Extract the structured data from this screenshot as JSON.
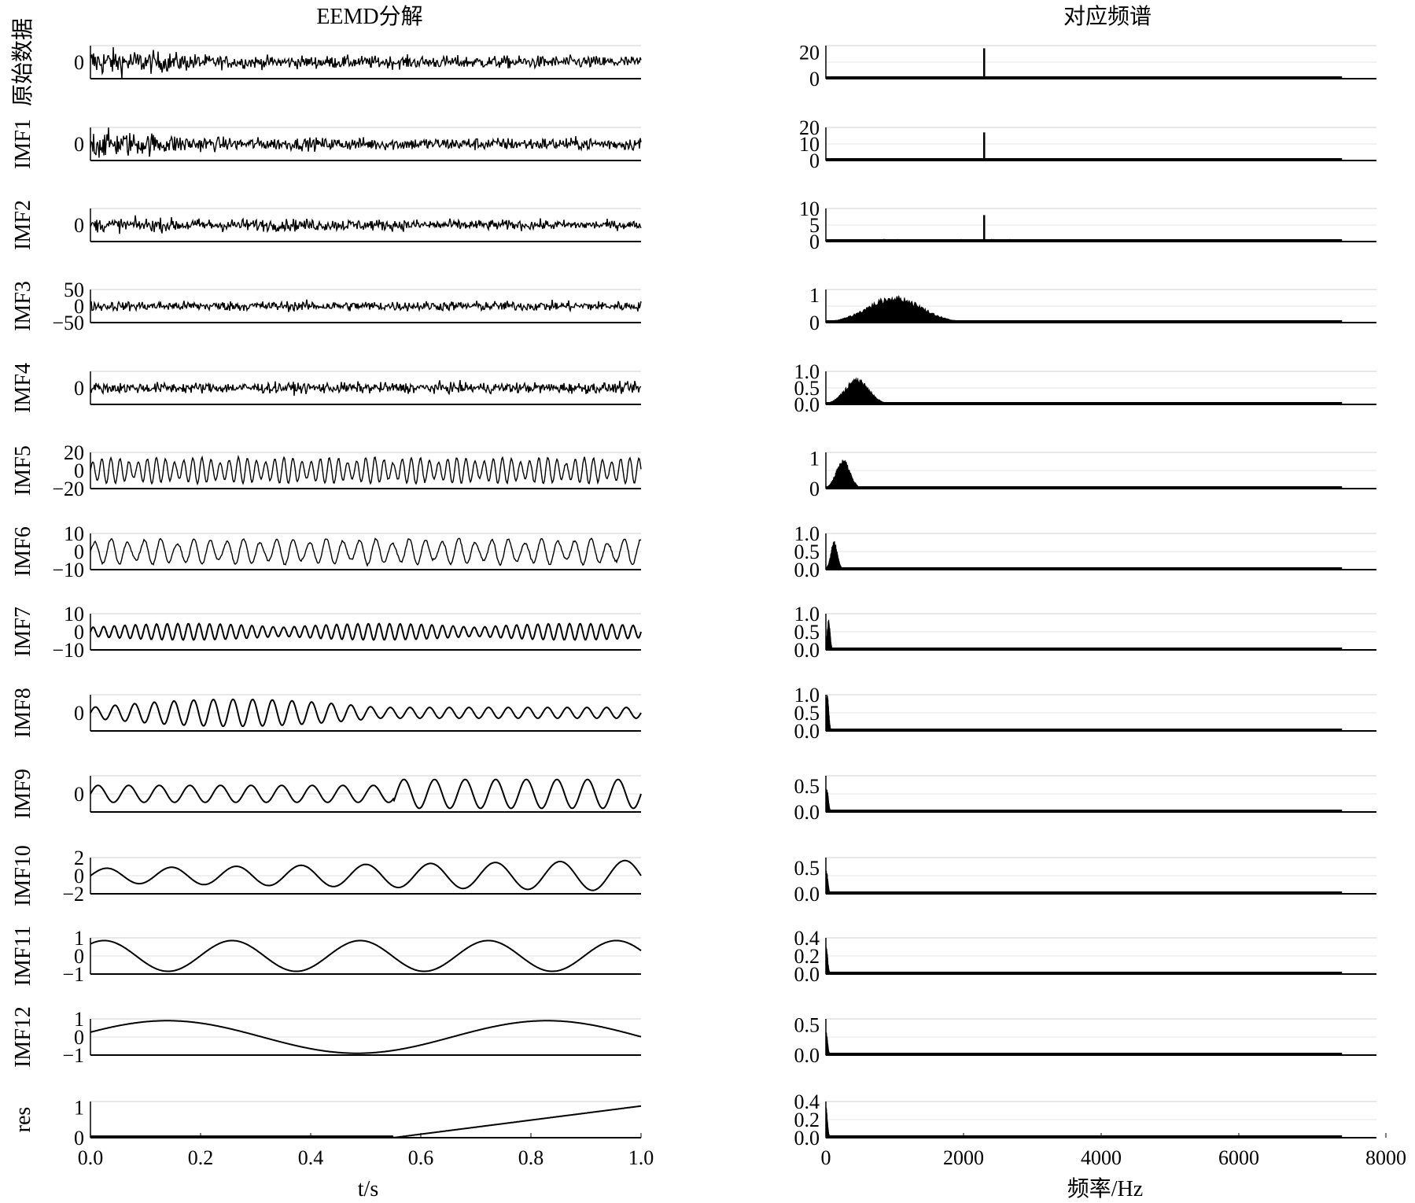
{
  "chart_data": [
    {
      "type": "line",
      "title": "EEMD分解",
      "xlabel": "t/s",
      "xlim": [
        0,
        1
      ],
      "x_ticks": [
        "0.0",
        "0.2",
        "0.4",
        "0.6",
        "0.8",
        "1.0"
      ],
      "grid": true,
      "panels": [
        {
          "label": "原始数据",
          "y_ticks": [
            "0"
          ],
          "ylim": [
            -40,
            40
          ]
        },
        {
          "label": "IMF1",
          "y_ticks": [
            "0"
          ],
          "ylim": [
            -30,
            30
          ]
        },
        {
          "label": "IMF2",
          "y_ticks": [
            "0"
          ],
          "ylim": [
            -30,
            30
          ]
        },
        {
          "label": "IMF3",
          "y_ticks": [
            "50",
            "0",
            "−50"
          ],
          "ylim": [
            -50,
            50
          ]
        },
        {
          "label": "IMF4",
          "y_ticks": [
            "0"
          ],
          "ylim": [
            -20,
            20
          ]
        },
        {
          "label": "IMF5",
          "y_ticks": [
            "20",
            "0",
            "−20"
          ],
          "ylim": [
            -20,
            20
          ]
        },
        {
          "label": "IMF6",
          "y_ticks": [
            "10",
            "0",
            "−10"
          ],
          "ylim": [
            -10,
            10
          ]
        },
        {
          "label": "IMF7",
          "y_ticks": [
            "10",
            "0",
            "−10"
          ],
          "ylim": [
            -10,
            10
          ]
        },
        {
          "label": "IMF8",
          "y_ticks": [
            "0"
          ],
          "ylim": [
            -4,
            4
          ]
        },
        {
          "label": "IMF9",
          "y_ticks": [
            "0"
          ],
          "ylim": [
            -3,
            3
          ]
        },
        {
          "label": "IMF10",
          "y_ticks": [
            "2",
            "0",
            "−2"
          ],
          "ylim": [
            -2,
            2
          ]
        },
        {
          "label": "IMF11",
          "y_ticks": [
            "1",
            "0",
            "−1"
          ],
          "ylim": [
            -1,
            1
          ]
        },
        {
          "label": "IMF12",
          "y_ticks": [
            "1",
            "0",
            "−1"
          ],
          "ylim": [
            -1,
            1
          ]
        },
        {
          "label": "res",
          "y_ticks": [
            "1",
            "0"
          ],
          "ylim": [
            0,
            1.2
          ]
        }
      ]
    },
    {
      "type": "bar",
      "title": "对应频谱",
      "xlabel": "频率/Hz",
      "xlim": [
        0,
        8000
      ],
      "x_ticks": [
        "0",
        "2000",
        "4000",
        "6000",
        "8000"
      ],
      "grid": true,
      "panels": [
        {
          "label": "原始数据",
          "y_ticks": [
            "20",
            "0"
          ],
          "ylim": [
            0,
            25
          ],
          "peaks": [
            {
              "freq": 2300,
              "amp": 23
            }
          ]
        },
        {
          "label": "IMF1",
          "y_ticks": [
            "20",
            "10",
            "0"
          ],
          "ylim": [
            0,
            20
          ],
          "peaks": [
            {
              "freq": 2300,
              "amp": 17
            }
          ]
        },
        {
          "label": "IMF2",
          "y_ticks": [
            "10",
            "5",
            "0"
          ],
          "ylim": [
            0,
            10
          ],
          "peaks": [
            {
              "freq": 2300,
              "amp": 8
            }
          ]
        },
        {
          "label": "IMF3",
          "y_ticks": [
            "1",
            "0"
          ],
          "ylim": [
            0,
            1.2
          ],
          "peaks": [
            {
              "freq": 1000,
              "amp": 1.0
            }
          ]
        },
        {
          "label": "IMF4",
          "y_ticks": [
            "1.0",
            "0.5",
            "0.0"
          ],
          "ylim": [
            0,
            1.0
          ],
          "peaks": [
            {
              "freq": 450,
              "amp": 0.8
            }
          ]
        },
        {
          "label": "IMF5",
          "y_ticks": [
            "1",
            "0"
          ],
          "ylim": [
            0,
            1.2
          ],
          "peaks": [
            {
              "freq": 250,
              "amp": 1.0
            }
          ]
        },
        {
          "label": "IMF6",
          "y_ticks": [
            "1.0",
            "0.5",
            "0.0"
          ],
          "ylim": [
            0,
            1.0
          ],
          "peaks": [
            {
              "freq": 120,
              "amp": 0.8
            }
          ]
        },
        {
          "label": "IMF7",
          "y_ticks": [
            "1.0",
            "0.5",
            "0.0"
          ],
          "ylim": [
            0,
            1.0
          ],
          "peaks": [
            {
              "freq": 40,
              "amp": 0.85
            }
          ]
        },
        {
          "label": "IMF8",
          "y_ticks": [
            "1.0",
            "0.5",
            "0.0"
          ],
          "ylim": [
            0,
            1.0
          ],
          "peaks": [
            {
              "freq": 20,
              "amp": 1.0
            }
          ]
        },
        {
          "label": "IMF9",
          "y_ticks": [
            "0.5",
            "0.0"
          ],
          "ylim": [
            0,
            0.7
          ],
          "peaks": [
            {
              "freq": 15,
              "amp": 0.45
            }
          ]
        },
        {
          "label": "IMF10",
          "y_ticks": [
            "0.5",
            "0.0"
          ],
          "ylim": [
            0,
            0.7
          ],
          "peaks": [
            {
              "freq": 8,
              "amp": 0.45
            }
          ]
        },
        {
          "label": "IMF11",
          "y_ticks": [
            "0.4",
            "0.2",
            "0.0"
          ],
          "ylim": [
            0,
            0.4
          ],
          "peaks": [
            {
              "freq": 5,
              "amp": 0.3
            }
          ]
        },
        {
          "label": "IMF12",
          "y_ticks": [
            "0.5",
            "0.0"
          ],
          "ylim": [
            0,
            0.6
          ],
          "peaks": [
            {
              "freq": 3,
              "amp": 0.4
            }
          ]
        },
        {
          "label": "res",
          "y_ticks": [
            "0.4",
            "0.2",
            "0.0"
          ],
          "ylim": [
            0,
            0.4
          ],
          "peaks": [
            {
              "freq": 1,
              "amp": 0.35
            }
          ]
        }
      ]
    }
  ]
}
